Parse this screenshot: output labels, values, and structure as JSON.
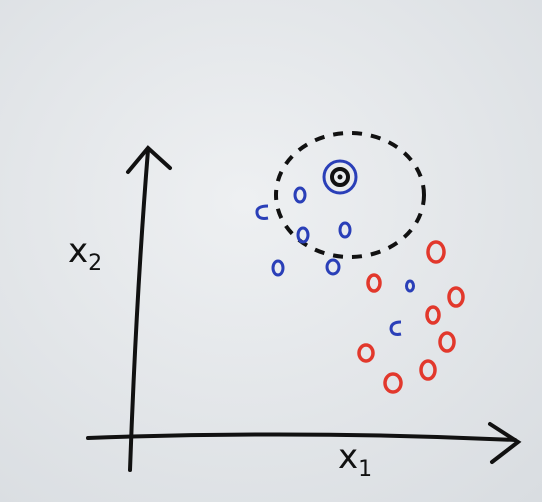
{
  "axes": {
    "y_label": {
      "letter": "x",
      "subscript": "2"
    },
    "x_label": {
      "letter": "x",
      "subscript": "1"
    }
  }
}
